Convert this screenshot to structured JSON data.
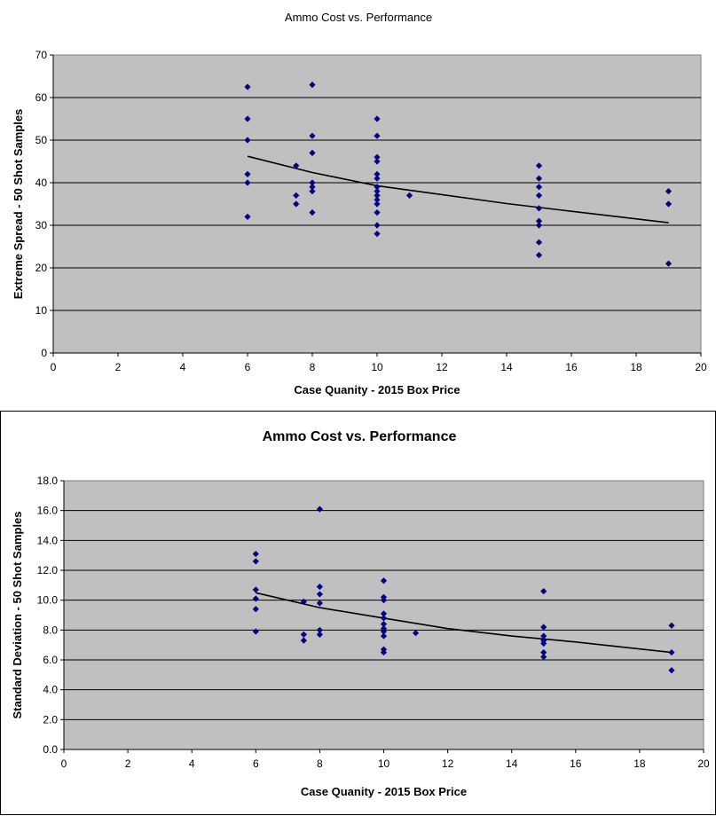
{
  "chart_data": [
    {
      "type": "scatter",
      "title": "Ammo Cost vs. Performance",
      "xlabel": "Case Quanity - 2015 Box Price",
      "ylabel": "Extreme Spread - 50 Shot Samples",
      "xlim": [
        0,
        20
      ],
      "ylim": [
        0,
        70
      ],
      "x_ticks": [
        "0",
        "2",
        "4",
        "6",
        "8",
        "10",
        "12",
        "14",
        "16",
        "18",
        "20"
      ],
      "y_ticks": [
        "0",
        "10",
        "20",
        "30",
        "40",
        "50",
        "60",
        "70"
      ],
      "grid": true,
      "background": "#C0C0C0",
      "marker_color": "#000080",
      "trend_color": "#000000",
      "points": [
        [
          6,
          62.5
        ],
        [
          6,
          55
        ],
        [
          6,
          50
        ],
        [
          6,
          42
        ],
        [
          6,
          40
        ],
        [
          6,
          32
        ],
        [
          7.5,
          44
        ],
        [
          7.5,
          37
        ],
        [
          7.5,
          35
        ],
        [
          8,
          63
        ],
        [
          8,
          51
        ],
        [
          8,
          47
        ],
        [
          8,
          40
        ],
        [
          8,
          39
        ],
        [
          8,
          38
        ],
        [
          8,
          33
        ],
        [
          10,
          55
        ],
        [
          10,
          51
        ],
        [
          10,
          46
        ],
        [
          10,
          45
        ],
        [
          10,
          42
        ],
        [
          10,
          41
        ],
        [
          10,
          39
        ],
        [
          10,
          38
        ],
        [
          10,
          37
        ],
        [
          10,
          36
        ],
        [
          10,
          35
        ],
        [
          10,
          33
        ],
        [
          10,
          30
        ],
        [
          10,
          28
        ],
        [
          11,
          37
        ],
        [
          15,
          44
        ],
        [
          15,
          41
        ],
        [
          15,
          39
        ],
        [
          15,
          37
        ],
        [
          15,
          34
        ],
        [
          15,
          31
        ],
        [
          15,
          30
        ],
        [
          15,
          26
        ],
        [
          15,
          23
        ],
        [
          19,
          38
        ],
        [
          19,
          35
        ],
        [
          19,
          21
        ]
      ],
      "trendline": [
        [
          6,
          46.2
        ],
        [
          8,
          42.4
        ],
        [
          10,
          39.3
        ],
        [
          12,
          37.2
        ],
        [
          14,
          35.1
        ],
        [
          16,
          33.3
        ],
        [
          19,
          30.6
        ]
      ]
    },
    {
      "type": "scatter",
      "title": "Ammo Cost vs. Performance",
      "xlabel": "Case Quanity - 2015 Box Price",
      "ylabel": "Standard Deviation - 50 Shot Samples",
      "xlim": [
        0,
        20
      ],
      "ylim": [
        0,
        18
      ],
      "x_ticks": [
        "0",
        "2",
        "4",
        "6",
        "8",
        "10",
        "12",
        "14",
        "16",
        "18",
        "20"
      ],
      "y_ticks": [
        "0.0",
        "2.0",
        "4.0",
        "6.0",
        "8.0",
        "10.0",
        "12.0",
        "14.0",
        "16.0",
        "18.0"
      ],
      "grid": true,
      "background": "#C0C0C0",
      "marker_color": "#000080",
      "trend_color": "#000000",
      "points": [
        [
          6,
          13.1
        ],
        [
          6,
          12.6
        ],
        [
          6,
          10.7
        ],
        [
          6,
          10.1
        ],
        [
          6,
          9.4
        ],
        [
          6,
          7.9
        ],
        [
          7.5,
          9.9
        ],
        [
          7.5,
          7.7
        ],
        [
          7.5,
          7.3
        ],
        [
          8,
          16.1
        ],
        [
          8,
          10.9
        ],
        [
          8,
          10.4
        ],
        [
          8,
          9.8
        ],
        [
          8,
          8.0
        ],
        [
          8,
          7.7
        ],
        [
          10,
          11.3
        ],
        [
          10,
          10.2
        ],
        [
          10,
          10.0
        ],
        [
          10,
          9.1
        ],
        [
          10,
          8.8
        ],
        [
          10,
          8.4
        ],
        [
          10,
          8.1
        ],
        [
          10,
          7.9
        ],
        [
          10,
          7.6
        ],
        [
          10,
          6.7
        ],
        [
          10,
          6.5
        ],
        [
          11,
          7.8
        ],
        [
          15,
          10.6
        ],
        [
          15,
          8.2
        ],
        [
          15,
          7.6
        ],
        [
          15,
          7.3
        ],
        [
          15,
          7.1
        ],
        [
          15,
          6.5
        ],
        [
          15,
          6.2
        ],
        [
          19,
          8.3
        ],
        [
          19,
          6.5
        ],
        [
          19,
          5.3
        ]
      ],
      "trendline": [
        [
          6,
          10.5
        ],
        [
          8,
          9.5
        ],
        [
          10,
          8.8
        ],
        [
          12,
          8.1
        ],
        [
          14,
          7.6
        ],
        [
          16,
          7.2
        ],
        [
          19,
          6.5
        ]
      ]
    }
  ]
}
